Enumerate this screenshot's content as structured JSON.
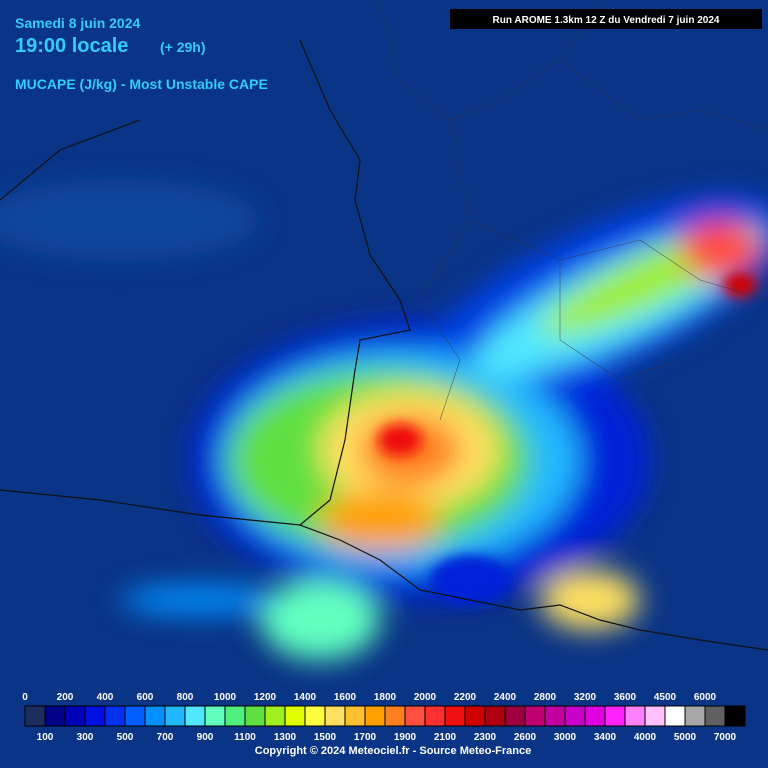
{
  "header": {
    "date": "Samedi 8 juin 2024",
    "time": "19:00 locale",
    "lead": "(+ 29h)",
    "parameter": "MUCAPE (J/kg) - Most Unstable CAPE",
    "run": "Run AROME 1.3km 12 Z du Vendredi 7 juin 2024"
  },
  "legend": {
    "items": [
      {
        "label": 0,
        "color": "#1c2f5c"
      },
      {
        "label": 100,
        "color": "#000088"
      },
      {
        "label": 200,
        "color": "#0000b8"
      },
      {
        "label": 300,
        "color": "#0010e0"
      },
      {
        "label": 400,
        "color": "#0030f0"
      },
      {
        "label": 500,
        "color": "#0060ff"
      },
      {
        "label": 600,
        "color": "#0090ff"
      },
      {
        "label": 700,
        "color": "#20b8ff"
      },
      {
        "label": 800,
        "color": "#50e8ff"
      },
      {
        "label": 900,
        "color": "#60ffc0"
      },
      {
        "label": 1000,
        "color": "#50f080"
      },
      {
        "label": 1100,
        "color": "#60e040"
      },
      {
        "label": 1200,
        "color": "#a0f020"
      },
      {
        "label": 1300,
        "color": "#e0ff00"
      },
      {
        "label": 1400,
        "color": "#ffff40"
      },
      {
        "label": 1500,
        "color": "#ffe060"
      },
      {
        "label": 1600,
        "color": "#ffc030"
      },
      {
        "label": 1700,
        "color": "#ffa000"
      },
      {
        "label": 1800,
        "color": "#ff8020"
      },
      {
        "label": 1900,
        "color": "#ff5040"
      },
      {
        "label": 2000,
        "color": "#ff3030"
      },
      {
        "label": 2100,
        "color": "#f01010"
      },
      {
        "label": 2200,
        "color": "#d00000"
      },
      {
        "label": 2300,
        "color": "#b00010"
      },
      {
        "label": 2400,
        "color": "#a00040"
      },
      {
        "label": 2600,
        "color": "#c00070"
      },
      {
        "label": 2800,
        "color": "#c000a0"
      },
      {
        "label": 3000,
        "color": "#c800c8"
      },
      {
        "label": 3200,
        "color": "#e000e0"
      },
      {
        "label": 3400,
        "color": "#ff20ff"
      },
      {
        "label": 3600,
        "color": "#ff80ff"
      },
      {
        "label": 4000,
        "color": "#ffc0ff"
      },
      {
        "label": 4500,
        "color": "#ffffff"
      },
      {
        "label": 5000,
        "color": "#a8a8a8"
      },
      {
        "label": 6000,
        "color": "#606060"
      },
      {
        "label": 7000,
        "color": "#000000"
      }
    ]
  },
  "footer": {
    "copyright": "Copyright © 2024 Meteociel.fr - Source Meteo-France"
  }
}
